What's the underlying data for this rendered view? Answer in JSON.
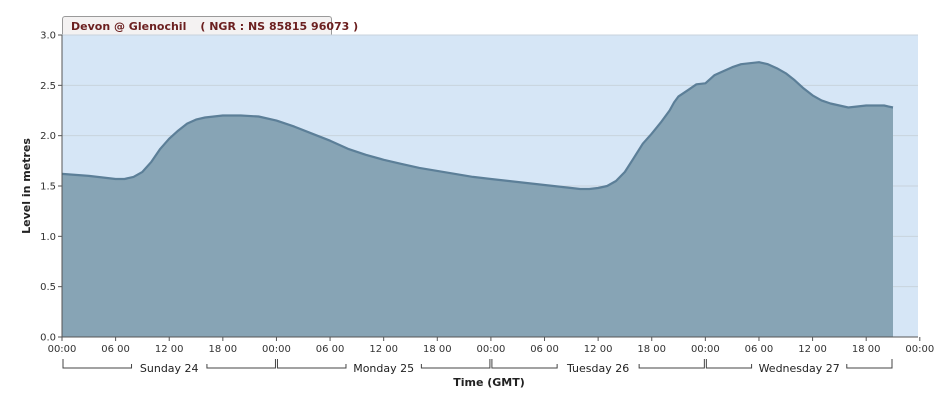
{
  "station": {
    "name": "Devon @ Glenochil",
    "ngr": "( NGR : NS 85815 96073 )"
  },
  "colors": {
    "plot_bg": "#d6e6f6",
    "area_fill": "#87a4b5",
    "line": "#5c7f98",
    "grid": "#c8d3dc"
  },
  "chart_data": {
    "type": "area",
    "xlabel": "Time (GMT)",
    "ylabel": "Level in metres",
    "ylim": [
      0,
      3
    ],
    "yticks": [
      "0.0",
      "0.5",
      "1.0",
      "1.5",
      "2.0",
      "2.5",
      "3.0"
    ],
    "x_range_hours": [
      0,
      93
    ],
    "xtick_labels": [
      "00:00",
      "06 00",
      "12 00",
      "18 00",
      "00:00",
      "06 00",
      "12 00",
      "18 00",
      "00:00",
      "06 00",
      "12 00",
      "18 00",
      "00:00",
      "06 00",
      "12 00",
      "18 00",
      "00:00"
    ],
    "days": [
      "Sunday 24",
      "Monday 25",
      "Tuesday 26",
      "Wednesday 27"
    ],
    "grid": true,
    "series": [
      {
        "x_hours": [
          0,
          3,
          6,
          7,
          8,
          9,
          10,
          11,
          12,
          13,
          14,
          15,
          16,
          18,
          20,
          22,
          24,
          26,
          28,
          30,
          32,
          34,
          36,
          38,
          40,
          42,
          44,
          46,
          48,
          50,
          52,
          53,
          54,
          55,
          56,
          57,
          58,
          59,
          60,
          61,
          62,
          63,
          64,
          65,
          66,
          67,
          68,
          68.5,
          69,
          70,
          71,
          72,
          73,
          74,
          75,
          76,
          77,
          78,
          79,
          80,
          81,
          82,
          83,
          84,
          85,
          86,
          87,
          88,
          89,
          90,
          91,
          92,
          93
        ],
        "values": [
          1.62,
          1.6,
          1.57,
          1.57,
          1.59,
          1.64,
          1.74,
          1.87,
          1.97,
          2.05,
          2.12,
          2.16,
          2.18,
          2.2,
          2.2,
          2.19,
          2.15,
          2.09,
          2.02,
          1.95,
          1.87,
          1.81,
          1.76,
          1.72,
          1.68,
          1.65,
          1.62,
          1.59,
          1.57,
          1.55,
          1.53,
          1.52,
          1.51,
          1.5,
          1.49,
          1.48,
          1.47,
          1.47,
          1.48,
          1.5,
          1.55,
          1.64,
          1.78,
          1.92,
          2.02,
          2.13,
          2.25,
          2.33,
          2.39,
          2.45,
          2.51,
          2.52,
          2.6,
          2.64,
          2.68,
          2.71,
          2.72,
          2.73,
          2.71,
          2.67,
          2.62,
          2.55,
          2.47,
          2.4,
          2.35,
          2.32,
          2.3,
          2.28,
          2.29,
          2.3,
          2.3,
          2.3,
          2.28
        ]
      }
    ]
  }
}
